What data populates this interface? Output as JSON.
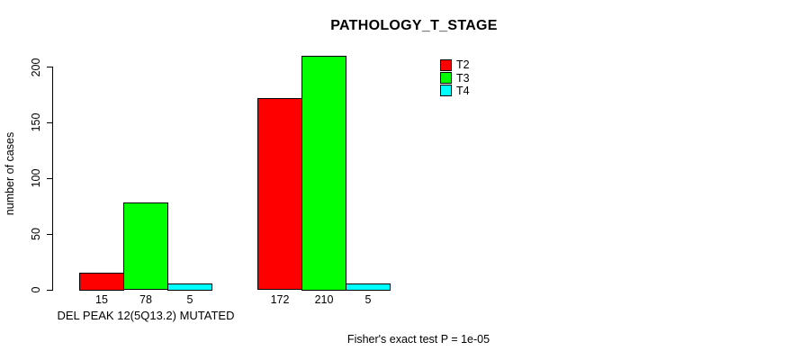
{
  "chart_data": {
    "type": "bar",
    "title": "PATHOLOGY_T_STAGE",
    "ylabel": "number of cases",
    "xlabel": "",
    "ylim": [
      0,
      200
    ],
    "yticks": [
      0,
      50,
      100,
      150,
      200
    ],
    "grid": false,
    "legend_position": "top-right",
    "series_names": [
      "T2",
      "T3",
      "T4"
    ],
    "series_colors": [
      "#ff0000",
      "#00ff00",
      "#00ffff"
    ],
    "categories": [
      "DEL PEAK 12(5Q13.2) MUTATED",
      ""
    ],
    "groups": [
      {
        "label": "DEL PEAK 12(5Q13.2) MUTATED",
        "values": [
          15,
          78,
          5
        ]
      },
      {
        "label": "",
        "values": [
          172,
          210,
          5
        ]
      }
    ],
    "annotation": "Fisher's exact test P = 1e-05"
  },
  "legend": {
    "items": [
      {
        "label": "T2",
        "color": "#ff0000"
      },
      {
        "label": "T3",
        "color": "#00ff00"
      },
      {
        "label": "T4",
        "color": "#00ffff"
      }
    ]
  },
  "colors": {
    "axis": "#000000",
    "background": "#ffffff"
  }
}
